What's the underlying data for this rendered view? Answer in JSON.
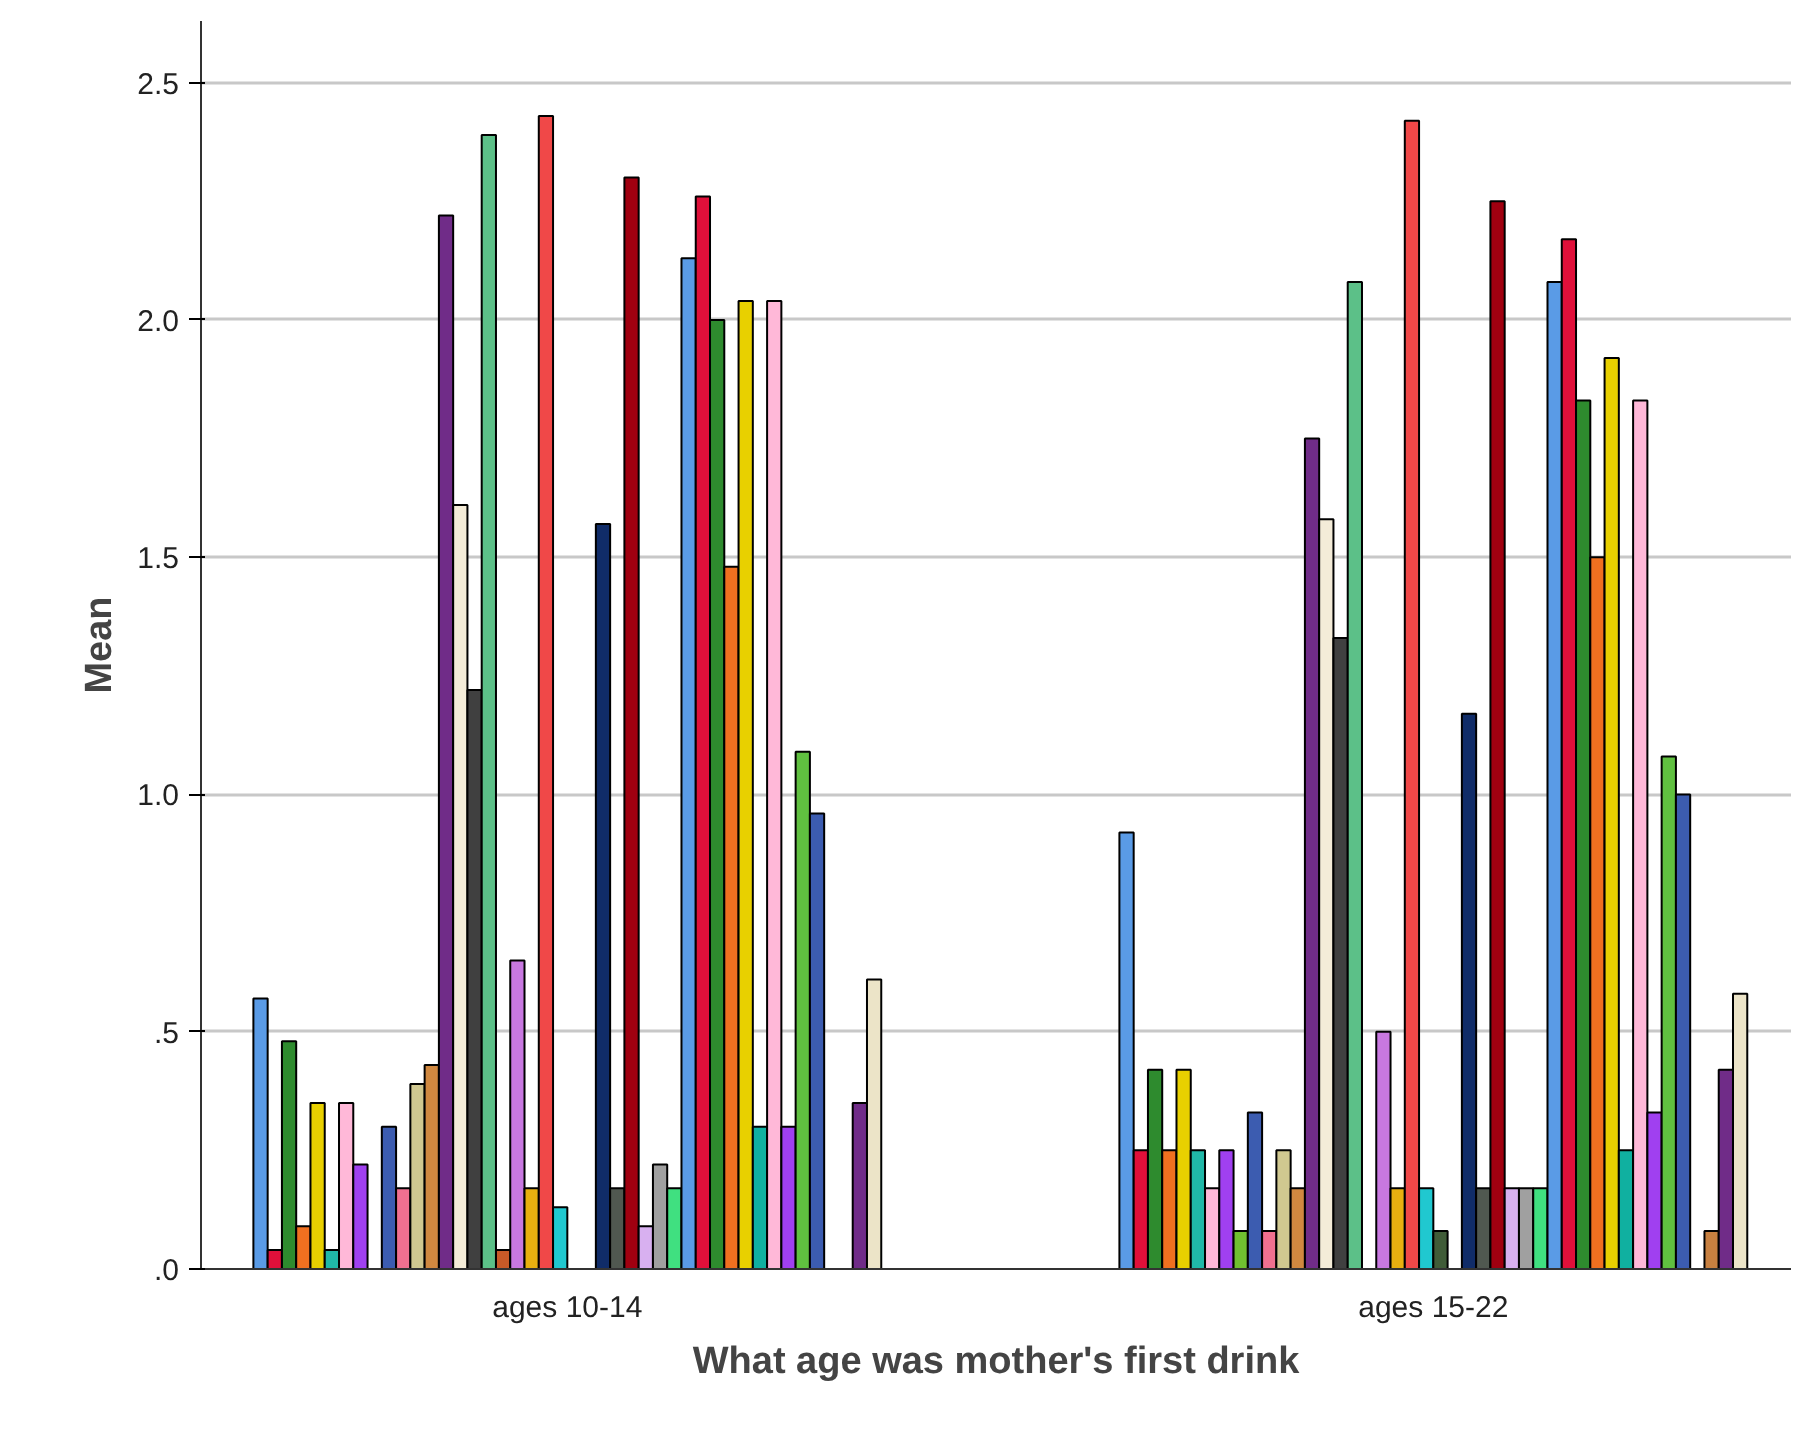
{
  "chart_data": {
    "type": "bar",
    "xlabel": "What age was mother's first drink",
    "ylabel": "Mean",
    "categories": [
      "ages 10-14",
      "ages 15-22"
    ],
    "ylim": [
      0,
      2.63
    ],
    "yticks": [
      {
        "value": 0,
        "label": ".0"
      },
      {
        "value": 0.5,
        "label": ".5"
      },
      {
        "value": 1,
        "label": "1.0"
      },
      {
        "value": 1.5,
        "label": "1.5"
      },
      {
        "value": 2,
        "label": "2.0"
      },
      {
        "value": 2.5,
        "label": "2.5"
      }
    ],
    "grid": "y",
    "series": [
      {
        "color": "#5a9be6",
        "values": [
          0.57,
          0.92
        ]
      },
      {
        "color": "#e0103a",
        "values": [
          0.04,
          0.25
        ]
      },
      {
        "color": "#2e8b2e",
        "values": [
          0.48,
          0.42
        ]
      },
      {
        "color": "#f07020",
        "values": [
          0.09,
          0.25
        ]
      },
      {
        "color": "#e8d000",
        "values": [
          0.35,
          0.42
        ]
      },
      {
        "color": "#20b8a8",
        "values": [
          0.04,
          0.25
        ]
      },
      {
        "color": "#ffb8d8",
        "values": [
          0.35,
          0.17
        ]
      },
      {
        "color": "#a040f0",
        "values": [
          0.22,
          0.25
        ]
      },
      {
        "color": "#70c030",
        "values": [
          null,
          0.08
        ]
      },
      {
        "color": "#3c5cb0",
        "values": [
          0.3,
          0.33
        ]
      },
      {
        "color": "#f07090",
        "values": [
          0.17,
          0.08
        ]
      },
      {
        "color": "#d0c890",
        "values": [
          0.39,
          0.25
        ]
      },
      {
        "color": "#d08840",
        "values": [
          0.43,
          0.17
        ]
      },
      {
        "color": "#702c88",
        "values": [
          2.22,
          1.75
        ]
      },
      {
        "color": "#f4ecd8",
        "values": [
          1.61,
          1.58
        ]
      },
      {
        "color": "#404040",
        "values": [
          1.22,
          1.33
        ]
      },
      {
        "color": "#5cc088",
        "values": [
          2.39,
          2.08
        ]
      },
      {
        "color": "#c85a28",
        "values": [
          0.04,
          null
        ]
      },
      {
        "color": "#c878e0",
        "values": [
          0.65,
          0.5
        ]
      },
      {
        "color": "#e8b010",
        "values": [
          0.17,
          0.17
        ]
      },
      {
        "color": "#f04848",
        "values": [
          2.43,
          2.42
        ]
      },
      {
        "color": "#20c8d0",
        "values": [
          0.13,
          0.17
        ]
      },
      {
        "color": "#405c38",
        "values": [
          null,
          0.08
        ]
      },
      {
        "values": [
          null,
          null
        ]
      },
      {
        "color": "#102c68",
        "values": [
          1.57,
          1.17
        ]
      },
      {
        "color": "#505850",
        "values": [
          0.17,
          0.17
        ]
      },
      {
        "color": "#a00010",
        "values": [
          2.3,
          2.25
        ]
      },
      {
        "color": "#d8b0f0",
        "values": [
          0.09,
          0.17
        ]
      },
      {
        "color": "#a0a0a0",
        "values": [
          0.22,
          0.17
        ]
      },
      {
        "color": "#40e080",
        "values": [
          0.17,
          0.17
        ]
      },
      {
        "color": "#5a9be6",
        "values": [
          2.13,
          2.08
        ]
      },
      {
        "color": "#e0103a",
        "values": [
          2.26,
          2.17
        ]
      },
      {
        "color": "#2e8b2e",
        "values": [
          2.0,
          1.83
        ]
      },
      {
        "color": "#f07020",
        "values": [
          1.48,
          1.5
        ]
      },
      {
        "color": "#e8d000",
        "values": [
          2.04,
          1.92
        ]
      },
      {
        "color": "#10b0a0",
        "values": [
          0.3,
          0.25
        ]
      },
      {
        "color": "#ffb8d8",
        "values": [
          2.04,
          1.83
        ]
      },
      {
        "color": "#a040f0",
        "values": [
          0.3,
          0.33
        ]
      },
      {
        "color": "#60c040",
        "values": [
          1.09,
          1.08
        ]
      },
      {
        "color": "#3c5cb0",
        "values": [
          0.96,
          1.0
        ]
      },
      {
        "values": [
          null,
          null
        ]
      },
      {
        "color": "#c88040",
        "values": [
          null,
          0.08
        ]
      },
      {
        "color": "#702c88",
        "values": [
          0.35,
          0.42
        ]
      },
      {
        "color": "#ece4c8",
        "values": [
          0.61,
          0.58
        ]
      }
    ]
  }
}
